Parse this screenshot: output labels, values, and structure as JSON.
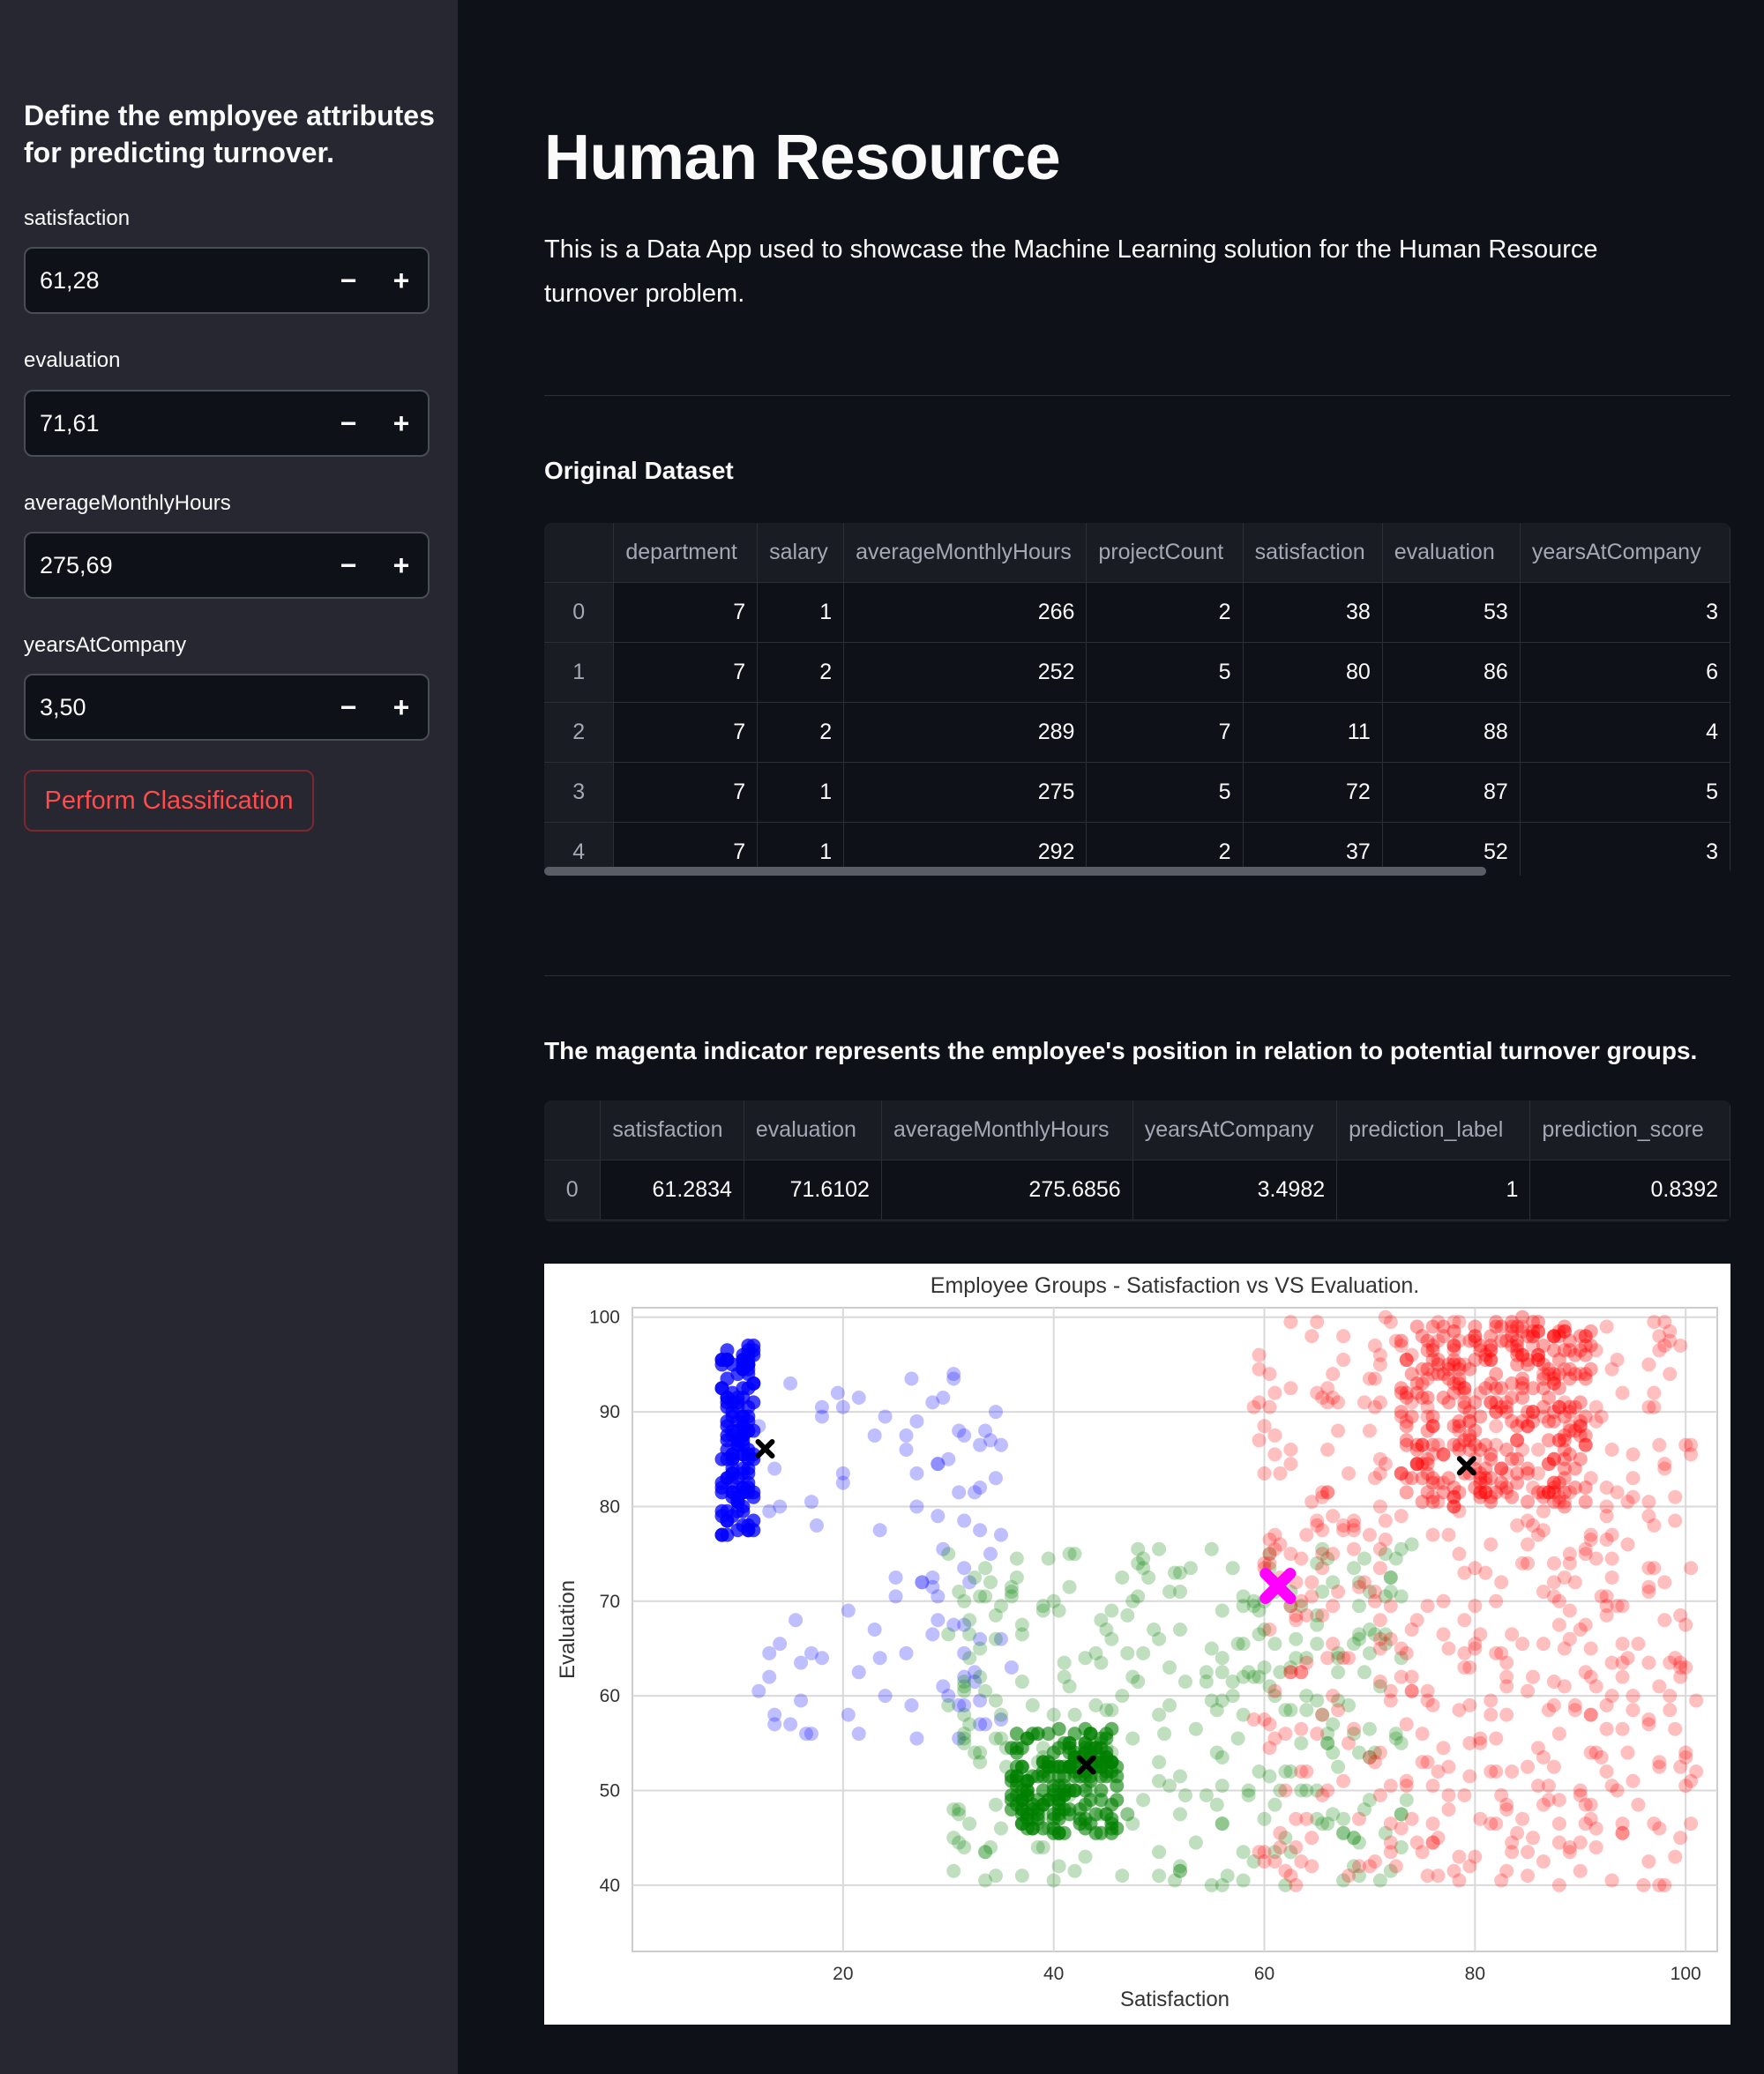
{
  "sidebar": {
    "header": "Define the employee attributes for predicting turnover.",
    "inputs": [
      {
        "label": "satisfaction",
        "value": "61,28"
      },
      {
        "label": "evaluation",
        "value": "71,61"
      },
      {
        "label": "averageMonthlyHours",
        "value": "275,69"
      },
      {
        "label": "yearsAtCompany",
        "value": "3,50"
      }
    ],
    "minus": "−",
    "plus": "+",
    "button": "Perform Classification"
  },
  "main": {
    "title": "Human Resource",
    "description": "This is a Data App used to showcase the Machine Learning solution for the Human Resource turnover problem.",
    "dataset_heading": "Original Dataset",
    "dataset": {
      "columns": [
        "",
        "department",
        "salary",
        "averageMonthlyHours",
        "projectCount",
        "satisfaction",
        "evaluation",
        "yearsAtCompany"
      ],
      "rows": [
        [
          "0",
          "7",
          "1",
          "266",
          "2",
          "38",
          "53",
          "3"
        ],
        [
          "1",
          "7",
          "2",
          "252",
          "5",
          "80",
          "86",
          "6"
        ],
        [
          "2",
          "7",
          "2",
          "289",
          "7",
          "11",
          "88",
          "4"
        ],
        [
          "3",
          "7",
          "1",
          "275",
          "5",
          "72",
          "87",
          "5"
        ],
        [
          "4",
          "7",
          "1",
          "292",
          "2",
          "37",
          "52",
          "3"
        ]
      ]
    },
    "prediction_heading": "The magenta indicator represents the employee's position in relation to potential turnover groups.",
    "prediction": {
      "columns": [
        "",
        "satisfaction",
        "evaluation",
        "averageMonthlyHours",
        "yearsAtCompany",
        "prediction_label",
        "prediction_score"
      ],
      "rows": [
        [
          "0",
          "61.2834",
          "71.6102",
          "275.6856",
          "3.4982",
          "1",
          "0.8392"
        ]
      ]
    }
  },
  "chart_data": {
    "type": "scatter",
    "title": "Employee Groups - Satisfaction vs VS Evaluation.",
    "xlabel": "Satisfaction",
    "ylabel": "Evaluation",
    "xlim": [
      0,
      103
    ],
    "ylim": [
      33,
      101
    ],
    "xticks": [
      20,
      40,
      60,
      80,
      100
    ],
    "yticks": [
      40,
      50,
      60,
      70,
      80,
      90,
      100
    ],
    "grid": true,
    "series": [
      {
        "color": "#0000ff",
        "clusters": [
          {
            "center": [
              10,
              87
            ],
            "spread": [
              1.5,
              10
            ],
            "count": 140,
            "alpha": 0.75
          },
          {
            "center": [
              24,
              75
            ],
            "spread": [
              12,
              20
            ],
            "count": 100,
            "alpha": 0.25
          }
        ]
      },
      {
        "color": "#008000",
        "clusters": [
          {
            "center": [
              41,
              51
            ],
            "spread": [
              5,
              5.5
            ],
            "count": 190,
            "alpha": 0.6
          },
          {
            "center": [
              52,
              58
            ],
            "spread": [
              22,
              18
            ],
            "count": 320,
            "alpha": 0.25
          }
        ]
      },
      {
        "color": "#ff0000",
        "clusters": [
          {
            "center": [
              82,
              90
            ],
            "spread": [
              9,
              10
            ],
            "count": 300,
            "alpha": 0.35
          },
          {
            "center": [
              80,
              70
            ],
            "spread": [
              21,
              30
            ],
            "count": 520,
            "alpha": 0.25
          }
        ]
      }
    ],
    "centroids": [
      [
        12.6,
        86.1
      ],
      [
        43.1,
        52.7
      ],
      [
        79.2,
        84.3
      ]
    ],
    "centroid_color": "#000000",
    "employee": {
      "x": 61.28,
      "y": 71.61,
      "color": "#ff00ff"
    }
  }
}
